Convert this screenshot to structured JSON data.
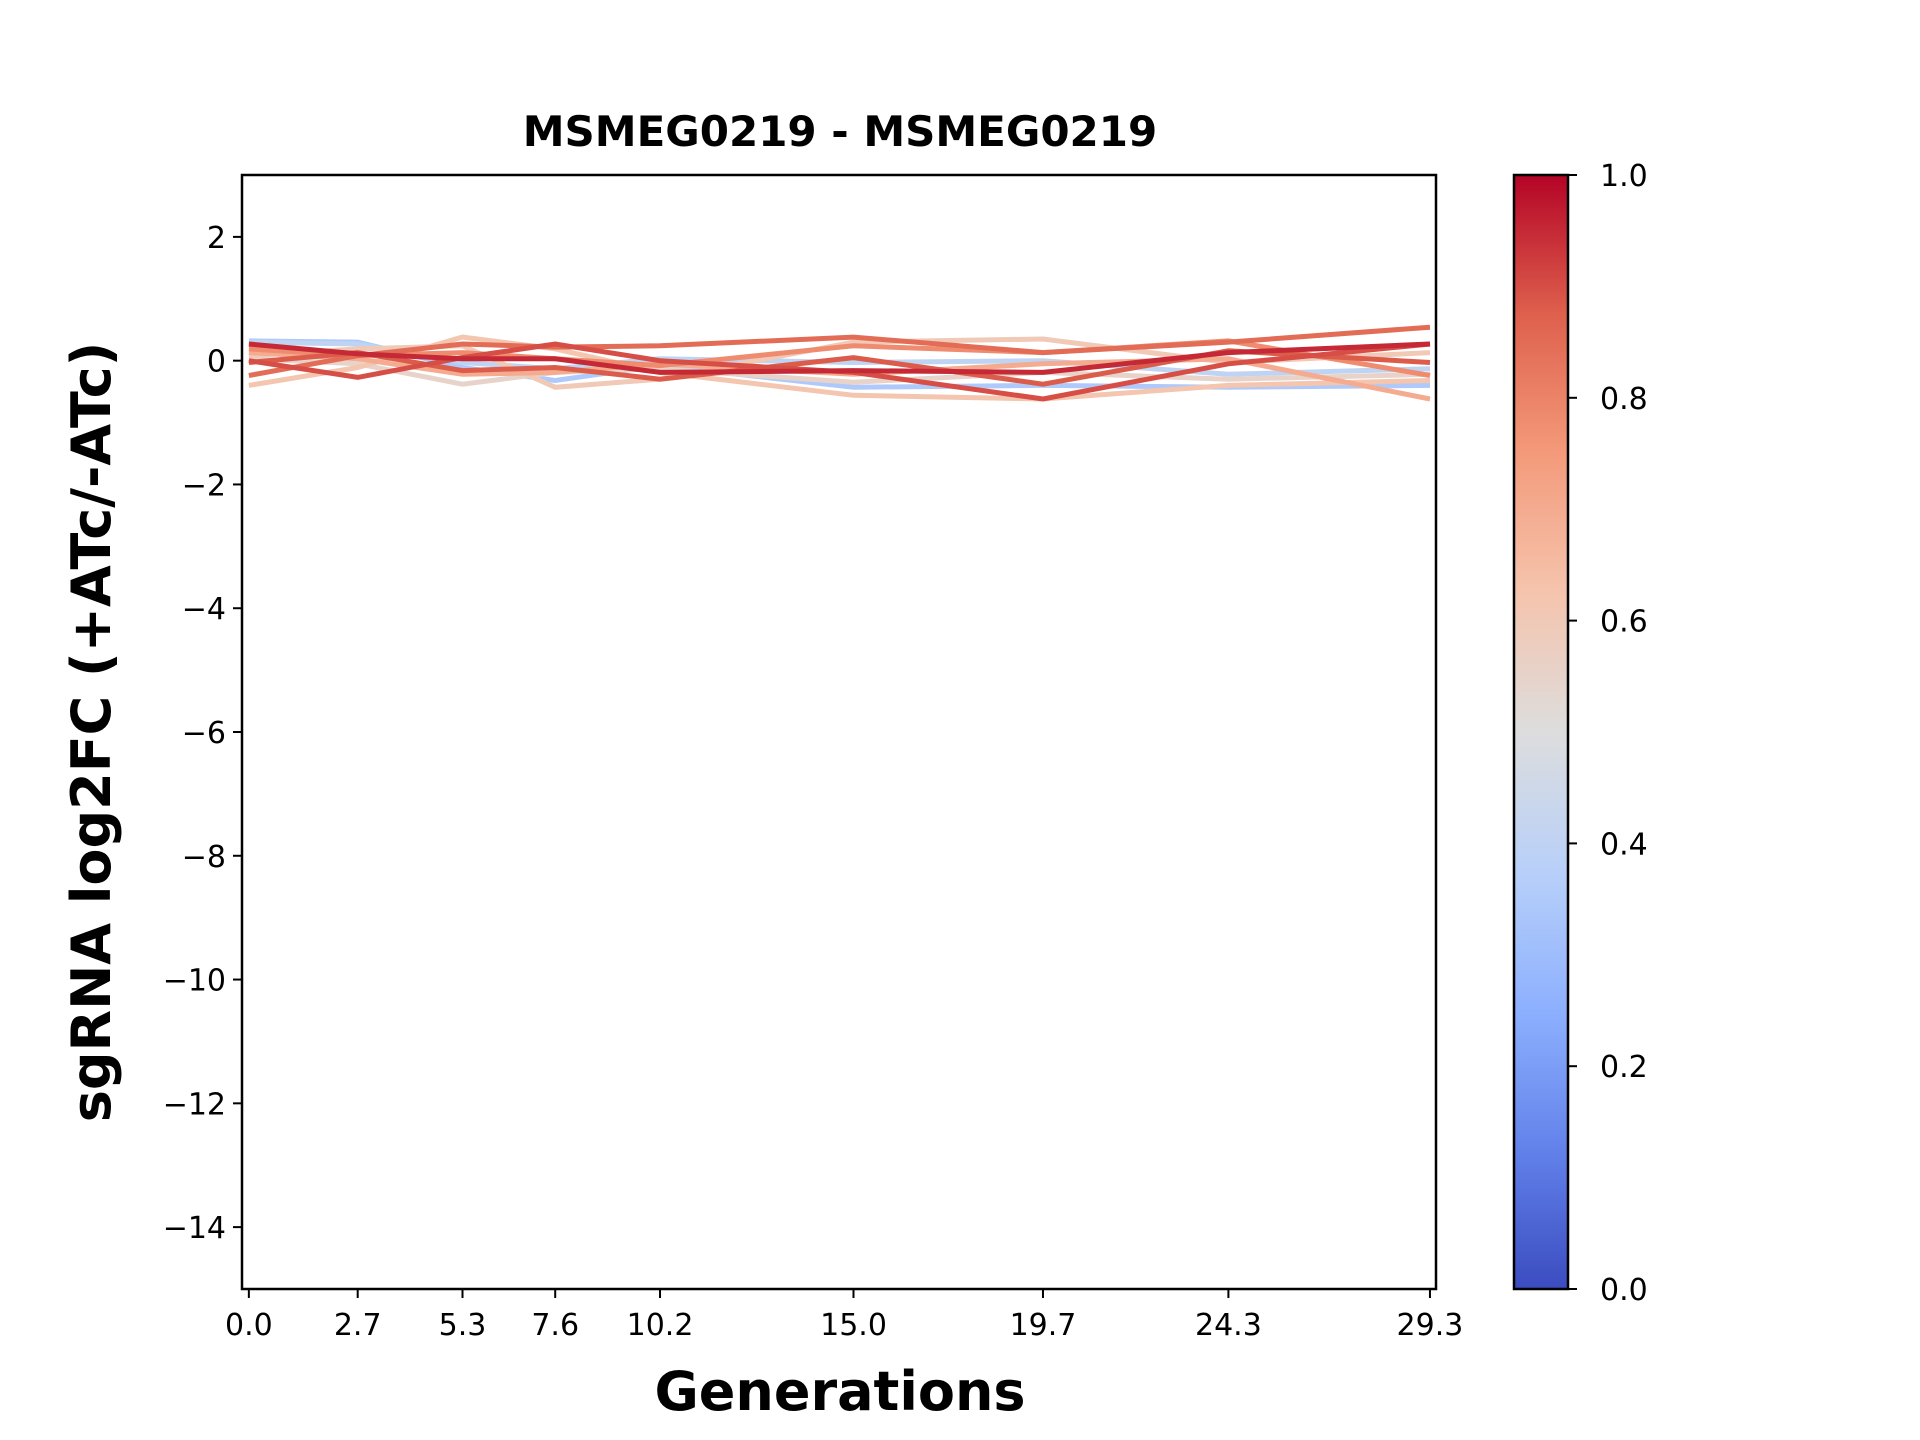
{
  "chart_data": {
    "type": "line",
    "title": "MSMEG0219 - MSMEG0219",
    "xlabel": "Generations",
    "ylabel": "sgRNA log2FC (+ATc/-ATc)",
    "x": [
      0.0,
      2.7,
      5.3,
      7.6,
      10.2,
      15.0,
      19.7,
      24.3,
      29.3
    ],
    "x_tick_labels": [
      "0.0",
      "2.7",
      "5.3",
      "7.6",
      "10.2",
      "15.0",
      "19.7",
      "24.3",
      "29.3"
    ],
    "ylim": [
      -15,
      3
    ],
    "xlim": [
      -0.17,
      29.45
    ],
    "y_ticks": [
      2,
      0,
      -2,
      -4,
      -6,
      -8,
      -10,
      -12,
      -14
    ],
    "y_tick_labels": [
      "2",
      "0",
      "−2",
      "−4",
      "−6",
      "−8",
      "−10",
      "−12",
      "−14"
    ],
    "grid": false,
    "colormap": "coolwarm",
    "colorbar": {
      "range": [
        0,
        1
      ],
      "ticks": [
        "0.0",
        "0.2",
        "0.4",
        "0.6",
        "0.8",
        "1.0"
      ]
    },
    "series": [
      {
        "color_value": 0.35,
        "values": [
          0.32,
          0.3,
          -0.11,
          -0.32,
          -0.08,
          -0.43,
          -0.4,
          -0.43,
          -0.4
        ]
      },
      {
        "color_value": 0.4,
        "values": [
          0.3,
          0.27,
          -0.03,
          -0.13,
          0.03,
          -0.03,
          0.0,
          -0.22,
          -0.13
        ]
      },
      {
        "color_value": 0.55,
        "values": [
          0.03,
          -0.05,
          -0.38,
          -0.19,
          -0.13,
          -0.35,
          -0.19,
          -0.3,
          -0.22
        ]
      },
      {
        "color_value": 0.6,
        "values": [
          0.08,
          0.19,
          0.24,
          -0.43,
          -0.3,
          0.3,
          0.35,
          -0.03,
          0.13
        ]
      },
      {
        "color_value": 0.62,
        "values": [
          -0.4,
          -0.11,
          0.38,
          0.19,
          -0.19,
          -0.56,
          -0.62,
          -0.4,
          -0.32
        ]
      },
      {
        "color_value": 0.7,
        "values": [
          0.13,
          0.03,
          -0.22,
          -0.19,
          -0.05,
          -0.22,
          -0.05,
          0.03,
          -0.62
        ]
      },
      {
        "color_value": 0.78,
        "values": [
          0.19,
          0.08,
          0.13,
          0.03,
          -0.08,
          0.24,
          0.13,
          0.32,
          -0.24
        ]
      },
      {
        "color_value": 0.85,
        "values": [
          -0.24,
          0.08,
          0.27,
          0.22,
          0.24,
          0.38,
          0.13,
          0.3,
          0.54
        ]
      },
      {
        "color_value": 0.88,
        "values": [
          -0.03,
          0.13,
          -0.16,
          -0.11,
          -0.3,
          0.05,
          -0.38,
          0.16,
          -0.03
        ]
      },
      {
        "color_value": 0.9,
        "values": [
          0.0,
          -0.27,
          0.05,
          0.27,
          0.0,
          -0.19,
          -0.62,
          -0.05,
          0.27
        ]
      },
      {
        "color_value": 0.95,
        "values": [
          0.27,
          0.11,
          0.03,
          0.03,
          -0.19,
          -0.16,
          -0.19,
          0.13,
          0.27
        ]
      }
    ]
  }
}
